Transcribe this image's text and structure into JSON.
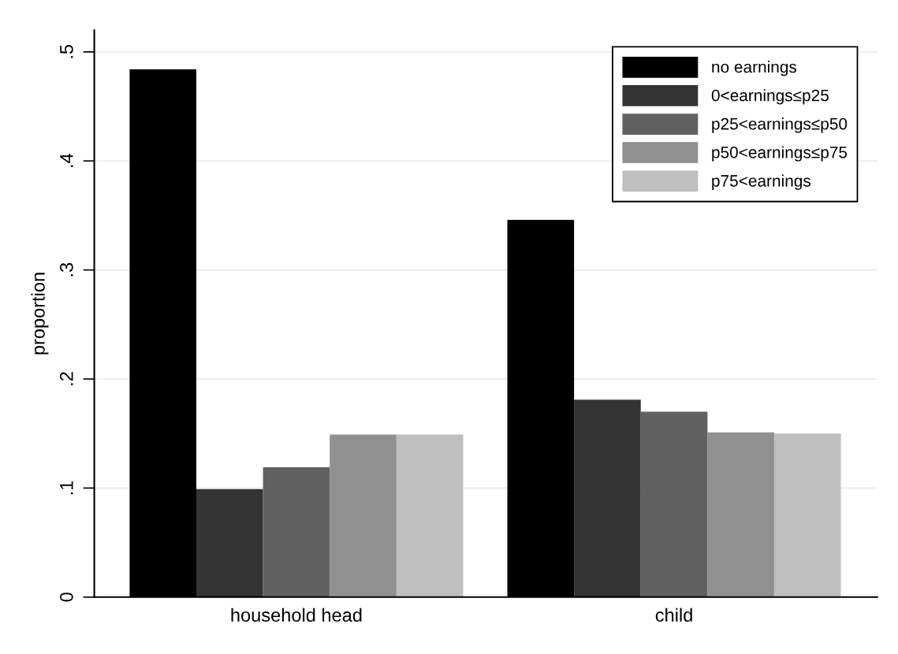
{
  "chart_data": {
    "type": "bar",
    "ylabel": "proportion",
    "categories": [
      "household head",
      "child"
    ],
    "series": [
      {
        "name": "no earnings",
        "color": "#000000",
        "values": [
          0.484,
          0.346
        ]
      },
      {
        "name": "0<earnings≤p25",
        "color": "#333333",
        "values": [
          0.099,
          0.181
        ]
      },
      {
        "name": "p25<earnings≤p50",
        "color": "#616161",
        "values": [
          0.119,
          0.17
        ]
      },
      {
        "name": "p50<earnings≤p75",
        "color": "#909090",
        "values": [
          0.149,
          0.151
        ]
      },
      {
        "name": "p75<earnings",
        "color": "#bfbfbf",
        "values": [
          0.149,
          0.15
        ]
      }
    ],
    "ylim": [
      0,
      0.52
    ],
    "yticks": [
      {
        "value": 0,
        "label": "0"
      },
      {
        "value": 0.1,
        "label": ".1"
      },
      {
        "value": 0.2,
        "label": ".2"
      },
      {
        "value": 0.3,
        "label": ".3"
      },
      {
        "value": 0.4,
        "label": ".4"
      },
      {
        "value": 0.5,
        "label": ".5"
      }
    ],
    "grid": "y",
    "legend": "top right"
  }
}
